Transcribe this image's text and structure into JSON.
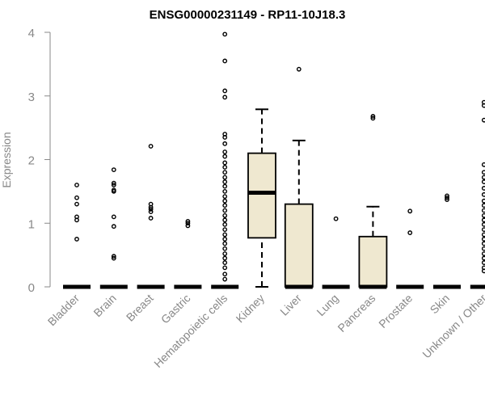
{
  "chart_data": {
    "type": "box",
    "title": "ENSG00000231149 - RP11-10J18.3",
    "xlabel": "",
    "ylabel": "Expression",
    "ylim": [
      0,
      4
    ],
    "yticks": [
      "0",
      "1",
      "2",
      "3",
      "4"
    ],
    "grid": false,
    "box_fill": "#efe8d0",
    "outlier_color": "#000000",
    "axis_color": "#888888",
    "categories": [
      "Bladder",
      "Brain",
      "Breast",
      "Gastric",
      "Hematopoietic cells",
      "Kidney",
      "Liver",
      "Lung",
      "Pancreas",
      "Prostate",
      "Skin",
      "Unknown / Other"
    ],
    "boxes": [
      {
        "q1": 0,
        "median": 0,
        "q3": 0,
        "whisker_low": 0,
        "whisker_high": 0,
        "outliers": [
          0.75,
          1.05,
          1.1,
          1.3,
          1.4,
          1.6
        ]
      },
      {
        "q1": 0,
        "median": 0,
        "q3": 0,
        "whisker_low": 0,
        "whisker_high": 0,
        "outliers": [
          0.45,
          0.48,
          0.95,
          1.1,
          1.5,
          1.52,
          1.6,
          1.63,
          1.84
        ]
      },
      {
        "q1": 0,
        "median": 0,
        "q3": 0,
        "whisker_low": 0,
        "whisker_high": 0,
        "outliers": [
          1.08,
          1.18,
          1.22,
          1.25,
          1.3,
          2.21
        ]
      },
      {
        "q1": 0,
        "median": 0,
        "q3": 0,
        "whisker_low": 0,
        "whisker_high": 0,
        "outliers": [
          0.96,
          1.0,
          1.03
        ]
      },
      {
        "q1": 0,
        "median": 0,
        "q3": 0,
        "whisker_low": 0,
        "whisker_high": 0,
        "outliers": [
          0.12,
          0.2,
          0.3,
          0.38,
          0.45,
          0.52,
          0.6,
          0.68,
          0.75,
          0.82,
          0.9,
          0.98,
          1.05,
          1.12,
          1.2,
          1.28,
          1.35,
          1.42,
          1.5,
          1.58,
          1.65,
          1.72,
          1.8,
          1.88,
          1.95,
          2.05,
          2.12,
          2.25,
          2.35,
          2.4,
          2.98,
          3.08,
          3.55,
          3.97
        ]
      },
      {
        "q1": 0.77,
        "median": 1.48,
        "q3": 2.1,
        "whisker_low": 0,
        "whisker_high": 2.79,
        "outliers": []
      },
      {
        "q1": 0,
        "median": 0,
        "q3": 1.3,
        "whisker_low": 0,
        "whisker_high": 2.3,
        "outliers": [
          3.42
        ]
      },
      {
        "q1": 0,
        "median": 0,
        "q3": 0,
        "whisker_low": 0,
        "whisker_high": 0,
        "outliers": [
          1.07
        ]
      },
      {
        "q1": 0,
        "median": 0,
        "q3": 0.79,
        "whisker_low": 0,
        "whisker_high": 1.26,
        "outliers": [
          2.65,
          2.68
        ]
      },
      {
        "q1": 0,
        "median": 0,
        "q3": 0,
        "whisker_low": 0,
        "whisker_high": 0,
        "outliers": [
          0.85,
          1.19
        ]
      },
      {
        "q1": 0,
        "median": 0,
        "q3": 0,
        "whisker_low": 0,
        "whisker_high": 0,
        "outliers": [
          1.37,
          1.4,
          1.43
        ]
      },
      {
        "q1": 0,
        "median": 0,
        "q3": 0,
        "whisker_low": 0,
        "whisker_high": 0,
        "outliers": [
          0.25,
          0.3,
          0.38,
          0.45,
          0.52,
          0.6,
          0.68,
          0.75,
          0.82,
          0.9,
          0.98,
          1.05,
          1.12,
          1.2,
          1.28,
          1.35,
          1.45,
          1.55,
          1.65,
          1.72,
          1.8,
          1.92,
          2.62,
          2.85,
          2.9
        ]
      }
    ]
  }
}
